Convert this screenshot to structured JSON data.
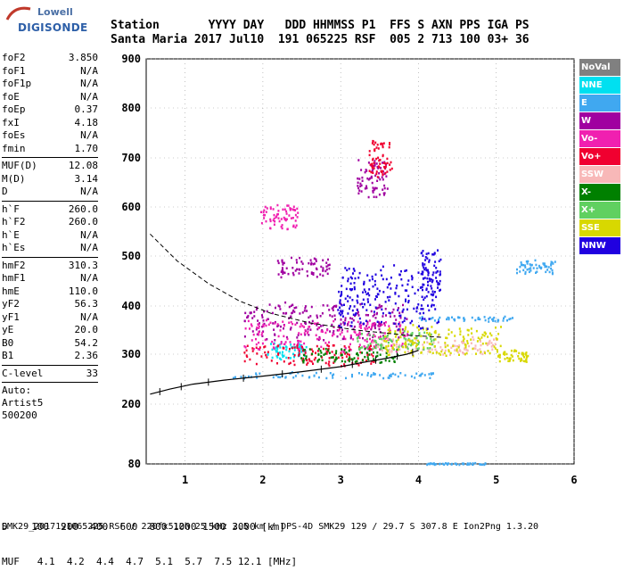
{
  "logo": {
    "line1": "Lowell",
    "line2": "DIGISONDE"
  },
  "header": {
    "row1": "Station       YYYY DAY   DDD HHMMSS P1  FFS S AXN PPS IGA PS",
    "row2": "Santa Maria 2017 Jul10  191 065225 RSF  005 2 713 100 03+ 36"
  },
  "params_group1": [
    {
      "name": "foF2",
      "value": "3.850"
    },
    {
      "name": "foF1",
      "value": "N/A"
    },
    {
      "name": "foF1p",
      "value": "N/A"
    },
    {
      "name": "foE",
      "value": "N/A"
    },
    {
      "name": "foEp",
      "value": "0.37"
    },
    {
      "name": "fxI",
      "value": "4.18"
    },
    {
      "name": "foEs",
      "value": "N/A"
    },
    {
      "name": "fmin",
      "value": "1.70"
    }
  ],
  "params_group2": [
    {
      "name": "MUF(D)",
      "value": "12.08"
    },
    {
      "name": "M(D)",
      "value": "3.14"
    },
    {
      "name": "D",
      "value": "N/A"
    }
  ],
  "params_group3": [
    {
      "name": "h`F",
      "value": "260.0"
    },
    {
      "name": "h`F2",
      "value": "260.0"
    },
    {
      "name": "h`E",
      "value": "N/A"
    },
    {
      "name": "h`Es",
      "value": "N/A"
    }
  ],
  "params_group4": [
    {
      "name": "hmF2",
      "value": "310.3"
    },
    {
      "name": "hmF1",
      "value": "N/A"
    },
    {
      "name": "hmE",
      "value": "110.0"
    },
    {
      "name": "yF2",
      "value": "56.3"
    },
    {
      "name": "yF1",
      "value": "N/A"
    },
    {
      "name": "yE",
      "value": "20.0"
    },
    {
      "name": "B0",
      "value": "54.2"
    },
    {
      "name": "B1",
      "value": "2.36"
    }
  ],
  "params_group5": [
    {
      "name": "C-level",
      "value": "33"
    }
  ],
  "auto": {
    "line1": "Auto:",
    "line2": "Artist5",
    "line3": "500200"
  },
  "legend": [
    {
      "label": "NoVal",
      "color": "#808080"
    },
    {
      "label": "NNE",
      "color": "#00e0f0"
    },
    {
      "label": "E",
      "color": "#40a8f0"
    },
    {
      "label": "W",
      "color": "#a000a0"
    },
    {
      "label": "Vo-",
      "color": "#f020b0"
    },
    {
      "label": "Vo+",
      "color": "#f00030"
    },
    {
      "label": "SSW",
      "color": "#f8b8b8"
    },
    {
      "label": "X-",
      "color": "#008000"
    },
    {
      "label": "X+",
      "color": "#60d060"
    },
    {
      "label": "SSE",
      "color": "#d8d800"
    },
    {
      "label": "NNW",
      "color": "#2000e0"
    }
  ],
  "bottom": {
    "d_row": "D    100  200  400  600  800 1000 1500 3000 [km]",
    "muf_row": "MUF   4.1  4.2  4.4  4.7  5.1  5.7  7.5 12.1 [MHz]"
  },
  "footer": "SMK29_2017191065225.RSF / 220fx512h 25 kHz 2.5 km / DPS-4D SMK29 129 / 29.7 S 307.8 E Ion2Png 1.3.20",
  "chart_data": {
    "type": "scatter",
    "xlabel": "",
    "ylabel": "",
    "x_ticks": [
      "1",
      "2",
      "3",
      "4",
      "5",
      "6"
    ],
    "y_ticks": [
      "80",
      "200",
      "300",
      "400",
      "500",
      "600",
      "700",
      "800",
      "900"
    ],
    "xlim": [
      0.5,
      6.0
    ],
    "ylim": [
      80,
      900
    ],
    "grid": true,
    "legend_position": "right",
    "series": [
      {
        "name": "NoVal",
        "clusters": []
      },
      {
        "name": "NNE",
        "clusters": [
          [
            2.3,
            310,
            0.5,
            30
          ]
        ]
      },
      {
        "name": "E",
        "clusters": [
          [
            2.9,
            260,
            2.6,
            10
          ],
          [
            4.6,
            375,
            1.2,
            8
          ],
          [
            5.5,
            480,
            0.5,
            20
          ],
          [
            4.5,
            82,
            0.8,
            3
          ]
        ]
      },
      {
        "name": "W",
        "clusters": [
          [
            2.8,
            370,
            2.1,
            60
          ],
          [
            2.5,
            480,
            0.7,
            30
          ],
          [
            3.4,
            660,
            0.4,
            60
          ]
        ]
      },
      {
        "name": "Vo-",
        "clusters": [
          [
            2.8,
            340,
            2.1,
            50
          ],
          [
            2.2,
            580,
            0.5,
            40
          ]
        ]
      },
      {
        "name": "Vo+",
        "clusters": [
          [
            2.6,
            300,
            1.7,
            35
          ],
          [
            3.5,
            700,
            0.3,
            60
          ]
        ]
      },
      {
        "name": "SSW",
        "clusters": [
          [
            4.2,
            320,
            1.6,
            30
          ]
        ]
      },
      {
        "name": "X-",
        "clusters": [
          [
            3.1,
            300,
            1.3,
            25
          ]
        ]
      },
      {
        "name": "X+",
        "clusters": [
          [
            3.7,
            330,
            1.0,
            30
          ]
        ]
      },
      {
        "name": "SSE",
        "clusters": [
          [
            4.3,
            330,
            1.5,
            50
          ],
          [
            5.2,
            300,
            0.4,
            20
          ]
        ]
      },
      {
        "name": "NNW",
        "clusters": [
          [
            3.6,
            420,
            1.3,
            100
          ],
          [
            4.15,
            470,
            0.25,
            70
          ]
        ]
      }
    ],
    "profile_curve": {
      "x": [
        0.55,
        0.8,
        1.1,
        1.5,
        2.0,
        2.5,
        3.0,
        3.3,
        3.6,
        3.85,
        4.0
      ],
      "y": [
        220,
        230,
        240,
        248,
        256,
        265,
        275,
        284,
        292,
        300,
        308
      ]
    },
    "muf_dashed": {
      "x": [
        0.55,
        0.9,
        1.3,
        1.7,
        2.1,
        2.6,
        3.2,
        3.8,
        4.3
      ],
      "y": [
        545,
        490,
        445,
        410,
        385,
        365,
        350,
        340,
        335
      ]
    }
  }
}
